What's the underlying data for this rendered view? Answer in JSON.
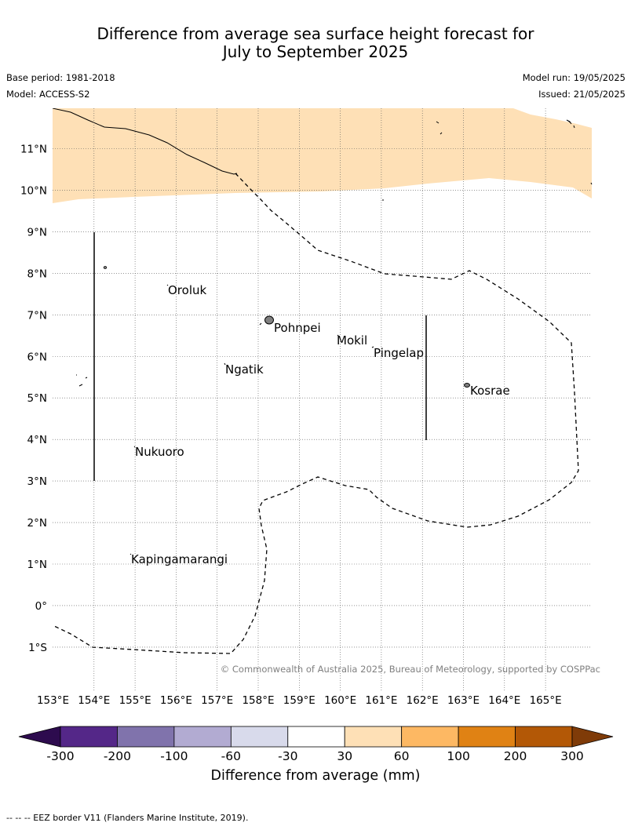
{
  "title_line1": "Difference from average sea surface height forecast for",
  "title_line2": "July to September 2025",
  "base_period": "Base period: 1981-2018",
  "model": "Model: ACCESS-S2",
  "model_run": "Model run: 19/05/2025",
  "issued": "Issued: 21/05/2025",
  "lat_labels": [
    "11°N",
    "10°N",
    "9°N",
    "8°N",
    "7°N",
    "6°N",
    "5°N",
    "4°N",
    "3°N",
    "2°N",
    "1°N",
    "0°",
    "1°S"
  ],
  "lon_labels": [
    "153°E",
    "154°E",
    "155°E",
    "156°E",
    "157°E",
    "158°E",
    "159°E",
    "160°E",
    "161°E",
    "162°E",
    "163°E",
    "164°E",
    "165°E"
  ],
  "places": [
    "Oroluk",
    "Pohnpei",
    "Mokil",
    "Pingelap",
    "Ngatik",
    "Kosrae",
    "Nukuoro",
    "Kapingamarangi"
  ],
  "copyright": "© Commonwealth of Australia 2025, Bureau of Meteorology, supported by COSPPac",
  "colorbar": {
    "title": "Difference from average (mm)",
    "tick_labels": [
      "-300",
      "-200",
      "-100",
      "-60",
      "-30",
      "30",
      "60",
      "100",
      "200",
      "300"
    ],
    "colors": [
      "#2d0b4e",
      "#542788",
      "#8073ac",
      "#b2abd2",
      "#d8daeb",
      "#ffffff",
      "#fee0b6",
      "#fdb863",
      "#e08214",
      "#b35806",
      "#7f3b08"
    ]
  },
  "shading_color": "#fee0b6",
  "footnote": "--  --  -- EEZ border V11 (Flanders Marine Institute, 2019)."
}
